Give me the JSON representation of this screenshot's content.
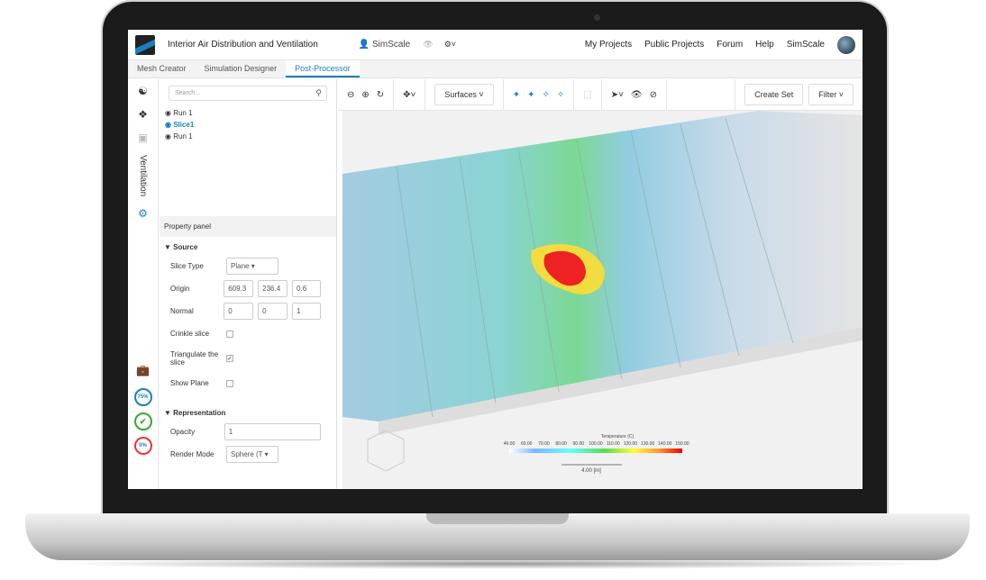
{
  "app": {
    "title": "Interior Air Distribution and Ventilation",
    "user": "SimScale"
  },
  "nav": [
    "My Projects",
    "Public Projects",
    "Forum",
    "Help",
    "SimScale"
  ],
  "tabs": [
    "Mesh Creator",
    "Simulation Designer",
    "Post-Processor"
  ],
  "rail": {
    "label": "Ventilation",
    "progress": [
      "75%",
      "0%"
    ]
  },
  "panel": {
    "search_placeholder": "Search...",
    "tree": [
      "Run 1",
      "Slice1",
      "Run 1"
    ],
    "property_panel": "Property panel",
    "source": "Source",
    "slice_type_label": "Slice Type",
    "slice_type": "Plane",
    "origin_label": "Origin",
    "origin": [
      "609.3",
      "236.4",
      "0.6"
    ],
    "normal_label": "Normal",
    "normal": [
      "0",
      "0",
      "1"
    ],
    "crinkle": "Crinkle slice",
    "crinkle_checked": false,
    "triangulate": "Triangulate the slice",
    "triangulate_checked": true,
    "show_plane": "Show Plane",
    "show_plane_checked": false,
    "representation": "Representation",
    "opacity_label": "Opacity",
    "opacity": "1",
    "render_mode_label": "Render Mode",
    "render_mode": "Sphere (T"
  },
  "toolbar": {
    "surfaces": "Surfaces",
    "create_set": "Create Set",
    "filter": "Filter"
  },
  "legend": {
    "title": "Temperature (C)",
    "ticks": [
      "46.00",
      "60.00",
      "70.00",
      "80.00",
      "90.00",
      "100.00",
      "110.00",
      "120.00",
      "130.00",
      "140.00",
      "150.00"
    ],
    "scale": "4.00 [m]"
  }
}
